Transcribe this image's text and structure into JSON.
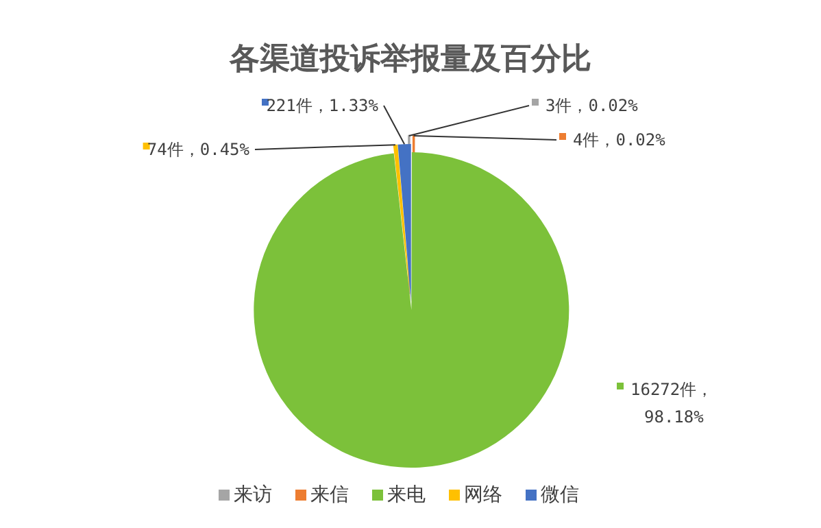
{
  "chart_data": {
    "type": "pie",
    "title": "各渠道投诉举报量及百分比",
    "categories": [
      "来访",
      "来信",
      "来电",
      "网络",
      "微信"
    ],
    "values": [
      3,
      4,
      16272,
      74,
      221
    ],
    "colors": [
      "#a5a5a5",
      "#ed7d31",
      "#7cc13a",
      "#ffc000",
      "#4472c4"
    ],
    "value_labels": [
      "3件，0.02%",
      "4件，0.02%",
      "16272件，98.18%",
      "74件，0.45%",
      "221件，1.33%"
    ],
    "legend": "bottom"
  }
}
